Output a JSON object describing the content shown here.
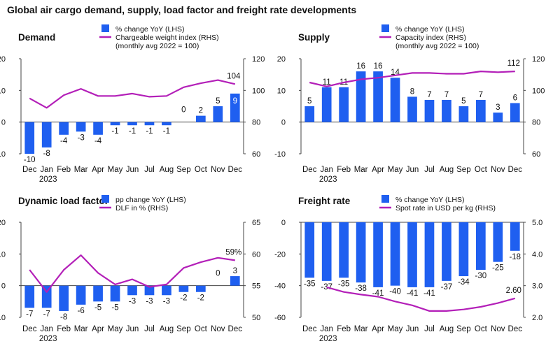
{
  "page": {
    "title": "Global air cargo demand, supply, load factor and freight rate developments"
  },
  "colors": {
    "bar": "#1f5ff0",
    "line": "#b31fb8",
    "axis": "#444444",
    "text": "#111111"
  },
  "chart_data": [
    {
      "id": "demand",
      "type": "bar+line",
      "title": "Demand",
      "categories": [
        "Dec",
        "Jan",
        "Feb",
        "Mar",
        "Apr",
        "May",
        "Jun",
        "Jul",
        "Aug",
        "Sep",
        "Oct",
        "Nov",
        "Dec"
      ],
      "category_year": {
        "index": 1,
        "label": "2023"
      },
      "legend": [
        {
          "kind": "bar",
          "label": "% change YoY (LHS)"
        },
        {
          "kind": "line",
          "label": "Chargeable weight index (RHS)"
        },
        {
          "kind": "note",
          "label": "(monthly avg 2022 = 100)"
        }
      ],
      "bars": {
        "name": "% change YoY",
        "values": [
          -10,
          -8,
          -4,
          -3,
          -4,
          -1,
          -1,
          -1,
          -1,
          0,
          2,
          5,
          9
        ],
        "labels": [
          "-10",
          "-8",
          "-4",
          "-3",
          "-4",
          "-1",
          "-1",
          "-1",
          "-1",
          "0",
          "2",
          "5",
          "9"
        ]
      },
      "line": {
        "name": "Chargeable weight index",
        "values": [
          95,
          89,
          97,
          101,
          96.5,
          96.5,
          98,
          96,
          96.5,
          102,
          104.5,
          106.5,
          104
        ],
        "end_label": "104"
      },
      "y_left": {
        "min": -10,
        "max": 20,
        "ticks": [
          -10,
          0,
          10,
          20
        ],
        "tick_labels": [
          "-10",
          "0",
          "10",
          "20"
        ]
      },
      "y_right": {
        "min": 60,
        "max": 120,
        "ticks": [
          60,
          80,
          100,
          120
        ],
        "tick_labels": [
          "60",
          "80",
          "100",
          "120"
        ]
      }
    },
    {
      "id": "supply",
      "type": "bar+line",
      "title": "Supply",
      "categories": [
        "Dec",
        "Jan",
        "Feb",
        "Mar",
        "Apr",
        "May",
        "Jun",
        "Jul",
        "Aug",
        "Sep",
        "Oct",
        "Nov",
        "Dec"
      ],
      "category_year": {
        "index": 1,
        "label": "2023"
      },
      "legend": [
        {
          "kind": "bar",
          "label": "% change YoY (LHS)"
        },
        {
          "kind": "line",
          "label": "Capacity index (RHS)"
        },
        {
          "kind": "note",
          "label": "(monthly avg 2022 = 100)"
        }
      ],
      "bars": {
        "name": "% change YoY",
        "values": [
          5,
          11,
          11,
          16,
          16,
          14,
          8,
          7,
          7,
          5,
          7,
          3,
          6
        ],
        "labels": [
          "5",
          "11",
          "11",
          "16",
          "16",
          "14",
          "8",
          "7",
          "7",
          "5",
          "7",
          "3",
          "6"
        ]
      },
      "line": {
        "name": "Capacity index",
        "values": [
          105,
          102.5,
          105,
          107,
          108,
          109.5,
          111,
          111,
          110.5,
          110.5,
          112,
          111.5,
          112
        ],
        "end_label": "112"
      },
      "y_left": {
        "min": -10,
        "max": 20,
        "ticks": [
          -10,
          0,
          10,
          20
        ],
        "tick_labels": [
          "-10",
          "0",
          "10",
          "20"
        ]
      },
      "y_right": {
        "min": 60,
        "max": 120,
        "ticks": [
          60,
          80,
          100,
          120
        ],
        "tick_labels": [
          "60",
          "80",
          "100",
          "120"
        ]
      }
    },
    {
      "id": "dlf",
      "type": "bar+line",
      "title": "Dynamic load factor",
      "categories": [
        "Dec",
        "Jan",
        "Feb",
        "Mar",
        "Apr",
        "May",
        "Jun",
        "Jul",
        "Aug",
        "Sep",
        "Oct",
        "Nov",
        "Dec"
      ],
      "category_year": {
        "index": 1,
        "label": "2023"
      },
      "legend": [
        {
          "kind": "bar",
          "label": "pp change YoY (LHS)"
        },
        {
          "kind": "line",
          "label": "DLF in % (RHS)"
        }
      ],
      "bars": {
        "name": "pp change YoY",
        "values": [
          -7,
          -7,
          -8,
          -6,
          -5,
          -5,
          -3,
          -3,
          -3,
          -2,
          -2,
          0,
          3
        ],
        "labels": [
          "-7",
          "-7",
          "-8",
          "-6",
          "-5",
          "-5",
          "-3",
          "-3",
          "-3",
          "-2",
          "-2",
          "0",
          "3"
        ]
      },
      "line": {
        "name": "DLF in %",
        "values": [
          57.5,
          54,
          57.5,
          59.8,
          57,
          55.2,
          56,
          54.8,
          55.2,
          57.8,
          58.7,
          59.4,
          59
        ],
        "end_label": "59%"
      },
      "y_left": {
        "min": -10,
        "max": 20,
        "ticks": [
          -10,
          0,
          10,
          20
        ],
        "tick_labels": [
          "-10",
          "0",
          "10",
          "20"
        ]
      },
      "y_right": {
        "min": 50,
        "max": 65,
        "ticks": [
          50,
          55,
          60,
          65
        ],
        "tick_labels": [
          "50",
          "55",
          "60",
          "65"
        ]
      }
    },
    {
      "id": "freight",
      "type": "bar+line",
      "title": "Freight rate",
      "categories": [
        "Dec",
        "Jan",
        "Feb",
        "Mar",
        "Apr",
        "May",
        "Jun",
        "Jul",
        "Aug",
        "Sep",
        "Oct",
        "Nov",
        "Dec"
      ],
      "category_year": {
        "index": 1,
        "label": "2023"
      },
      "legend": [
        {
          "kind": "bar",
          "label": "% change YoY (LHS)"
        },
        {
          "kind": "line",
          "label": "Spot rate in USD per kg (RHS)"
        }
      ],
      "bars": {
        "name": "% change YoY",
        "values": [
          -35,
          -37,
          -35,
          -38,
          -41,
          -40,
          -41,
          -41,
          -37,
          -34,
          -30,
          -25,
          -18
        ],
        "labels": [
          "-35",
          "-37",
          "-35",
          "-38",
          "-41",
          "-40",
          "-41",
          "-41",
          "-37",
          "-34",
          "-30",
          "-25",
          "-18"
        ]
      },
      "line": {
        "name": "Spot rate in USD per kg",
        "values": [
          null,
          2.95,
          2.8,
          2.72,
          2.65,
          2.5,
          2.38,
          2.2,
          2.2,
          2.25,
          2.33,
          2.45,
          2.6
        ],
        "end_label": "2.60"
      },
      "y_left": {
        "min": -60,
        "max": 0,
        "ticks": [
          -60,
          -40,
          -20,
          0
        ],
        "tick_labels": [
          "-60",
          "-40",
          "-20",
          "0"
        ]
      },
      "y_right": {
        "min": 2.0,
        "max": 5.0,
        "ticks": [
          2.0,
          3.0,
          4.0,
          5.0
        ],
        "tick_labels": [
          "2.0",
          "3.0",
          "4.0",
          "5.0"
        ]
      }
    }
  ]
}
